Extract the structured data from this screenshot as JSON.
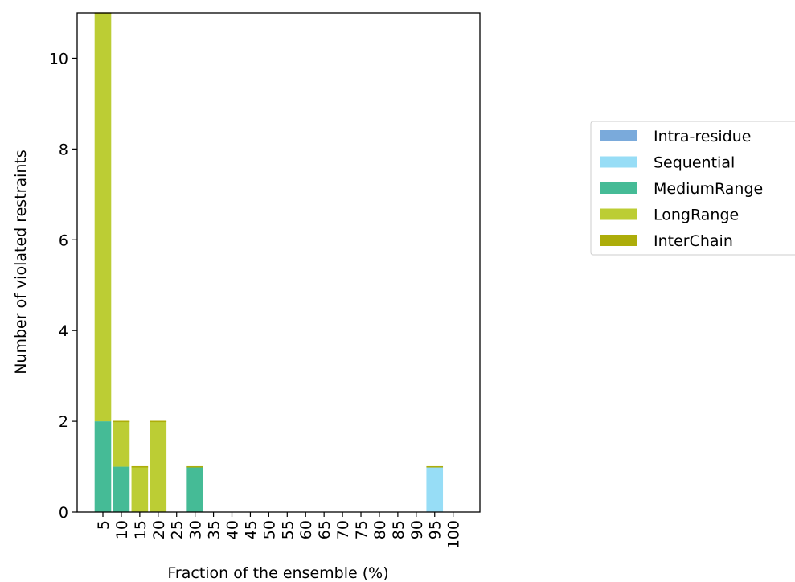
{
  "chart_data": {
    "type": "bar",
    "stacked": true,
    "title": "",
    "xlabel": "Fraction of the ensemble (%)",
    "ylabel": "Number of violated restraints",
    "ylim": [
      0,
      11
    ],
    "yticks": [
      0,
      2,
      4,
      6,
      8,
      10
    ],
    "grid": false,
    "legend_position": "right",
    "categories": [
      "5",
      "10",
      "15",
      "20",
      "25",
      "30",
      "35",
      "40",
      "45",
      "50",
      "55",
      "60",
      "65",
      "70",
      "75",
      "80",
      "85",
      "90",
      "95",
      "100"
    ],
    "series": [
      {
        "name": "Intra-residue",
        "color": "#7aaadb",
        "values": [
          0,
          0,
          0,
          0,
          0,
          0,
          0,
          0,
          0,
          0,
          0,
          0,
          0,
          0,
          0,
          0,
          0,
          0,
          0,
          0
        ]
      },
      {
        "name": "Sequential",
        "color": "#97ddf6",
        "values": [
          0,
          0,
          0,
          0,
          0,
          0,
          0,
          0,
          0,
          0,
          0,
          0,
          0,
          0,
          0,
          0,
          0,
          0,
          1,
          0
        ]
      },
      {
        "name": "MediumRange",
        "color": "#45bb96",
        "values": [
          2,
          1,
          0,
          0,
          0,
          1,
          0,
          0,
          0,
          0,
          0,
          0,
          0,
          0,
          0,
          0,
          0,
          0,
          0,
          0
        ]
      },
      {
        "name": "LongRange",
        "color": "#bccd34",
        "values": [
          9,
          1,
          1,
          2,
          0,
          0,
          0,
          0,
          0,
          0,
          0,
          0,
          0,
          0,
          0,
          0,
          0,
          0,
          0,
          0
        ]
      },
      {
        "name": "InterChain",
        "color": "#adad0a",
        "values": [
          0,
          0,
          0,
          0,
          0,
          0,
          0,
          0,
          0,
          0,
          0,
          0,
          0,
          0,
          0,
          0,
          0,
          0,
          0,
          0
        ]
      }
    ]
  }
}
